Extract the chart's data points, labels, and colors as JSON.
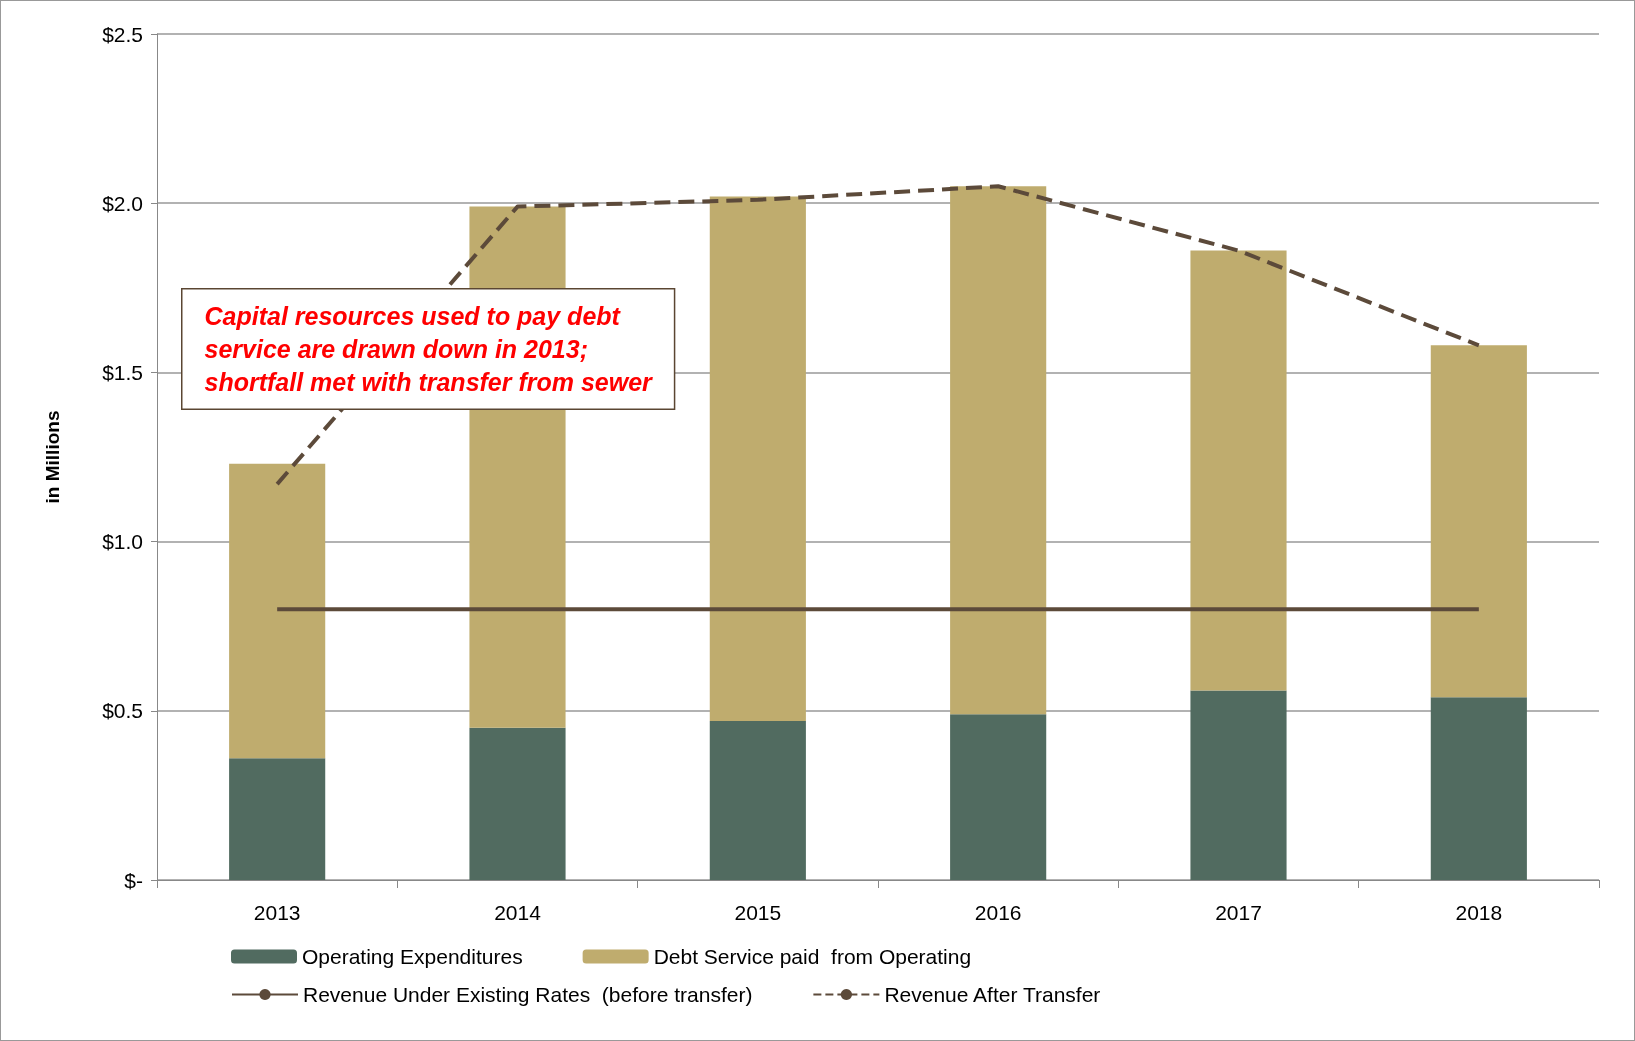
{
  "chart_data": {
    "type": "bar",
    "stacked": true,
    "ylabel": "in Millions",
    "categories": [
      "2013",
      "2014",
      "2015",
      "2016",
      "2017",
      "2018"
    ],
    "series": [
      {
        "name": "Operating Expenditures",
        "color": "#516b60",
        "values": [
          0.36,
          0.45,
          0.47,
          0.49,
          0.56,
          0.54
        ]
      },
      {
        "name": "Debt Service paid  from Operating",
        "color": "#bfac6e",
        "values": [
          0.87,
          1.54,
          1.55,
          1.56,
          1.3,
          1.04
        ]
      },
      {
        "name": "Revenue Under Existing Rates  (before transfer)",
        "type": "line",
        "color": "#5c4a3a",
        "line_style": "solid",
        "values": [
          0.8,
          0.8,
          0.8,
          0.8,
          0.8,
          0.8
        ]
      },
      {
        "name": "Revenue After Transfer",
        "type": "line",
        "color": "#5c4a3a",
        "line_style": "dashed",
        "values": [
          1.17,
          1.99,
          2.01,
          2.05,
          1.86,
          1.58
        ]
      }
    ],
    "ylim": [
      0,
      2.5
    ],
    "yticks": [
      {
        "value": 0,
        "label": "$-"
      },
      {
        "value": 0.5,
        "label": "$0.5"
      },
      {
        "value": 1,
        "label": "$1.0"
      },
      {
        "value": 1.5,
        "label": "$1.5"
      },
      {
        "value": 2,
        "label": "$2.0"
      },
      {
        "value": 2.5,
        "label": "$2.5"
      }
    ],
    "grid": "y",
    "legend": "bottom",
    "marker": "none",
    "annotations": [
      "Capital resources used to pay debt\nservice are drawn down in 2013;\nshortfall met with transfer from sewer"
    ]
  }
}
